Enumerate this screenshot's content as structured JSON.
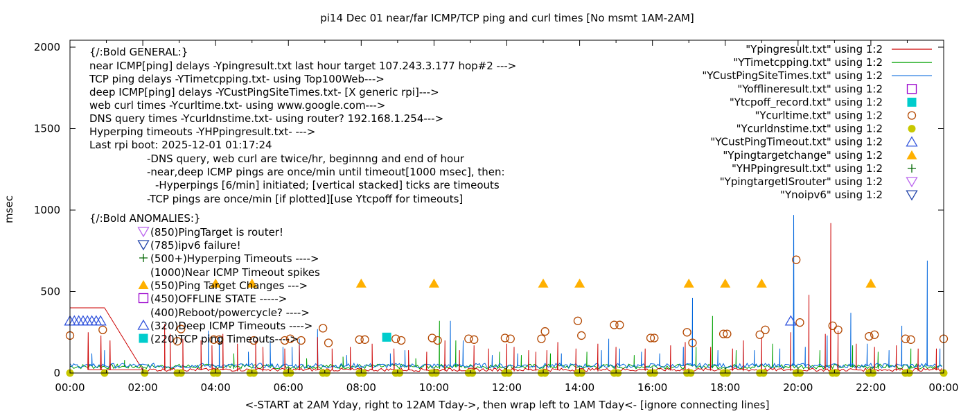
{
  "chart_data": {
    "type": "line",
    "title": "pi14 Dec 01  near/far ICMP/TCP ping and curl times [No msmt 1AM-2AM]",
    "xlabel": "<-START at 2AM Yday, right to 12AM Tday->, then wrap left to 1AM Tday<- [ignore connecting lines]",
    "ylabel": "msec",
    "ylim": [
      0,
      2050
    ],
    "xlim_hours": [
      0,
      24
    ],
    "yticks": [
      "0",
      "500",
      "1000",
      "1500",
      "2000"
    ],
    "xticks": [
      "00:00",
      "02:00",
      "04:00",
      "06:00",
      "08:00",
      "10:00",
      "12:00",
      "14:00",
      "16:00",
      "18:00",
      "20:00",
      "22:00",
      "00:00"
    ],
    "grid": false,
    "legend_position": "top-right",
    "legend": [
      {
        "label": "\"Ypingresult.txt\" using 1:2",
        "marker": "line",
        "color": "#cc0000"
      },
      {
        "label": "\"YTimetcpping.txt\" using 1:2",
        "marker": "line",
        "color": "#00a000"
      },
      {
        "label": "\"YCustPingSiteTimes.txt\" using 1:2",
        "marker": "line",
        "color": "#0066dd"
      },
      {
        "label": "\"Yofflineresult.txt\" using 1:2",
        "marker": "open-square",
        "color": "#9900cc"
      },
      {
        "label": "\"Ytcpoff_record.txt\" using 1:2",
        "marker": "filled-square",
        "color": "#00cccc"
      },
      {
        "label": "\"Ycurltime.txt\" using 1:2",
        "marker": "open-circle",
        "color": "#b34700"
      },
      {
        "label": "\"Ycurldnstime.txt\" using 1:2",
        "marker": "filled-circle",
        "color": "#c8c800"
      },
      {
        "label": "\"YCustPingTimeout.txt\" using 1:2",
        "marker": "open-triangle-up",
        "color": "#3355dd"
      },
      {
        "label": "\"Ypingtargetchange\" using 1:2",
        "marker": "filled-triangle-up",
        "color": "#ffb000"
      },
      {
        "label": "\"YHPpingresult.txt\" using 1:2",
        "marker": "plus",
        "color": "#006600"
      },
      {
        "label": "\"YpingtargetISrouter\" using 1:2",
        "marker": "open-triangle-down",
        "color": "#bb66ee"
      },
      {
        "label": "\"Ynoipv6\" using 1:2",
        "marker": "open-triangle-down",
        "color": "#2244aa"
      }
    ],
    "annotations_general": [
      "{/:Bold GENERAL:}",
      "near ICMP[ping] delays -Ypingresult.txt last hour target 107.243.3.177 hop#2 --->",
      "TCP ping delays -YTimetcpping.txt- using Top100Web--->",
      "deep ICMP[ping] delays -YCustPingSiteTimes.txt- [X generic rpi]--->",
      "web curl times -Ycurltime.txt- using www.google.com--->",
      "DNS query times -Ycurldnstime.txt- using router? 192.168.1.254--->",
      "Hyperping timeouts -YHPpingresult.txt- --->",
      "Last rpi boot: 2025-12-01 01:17:24",
      "-DNS query, web curl are twice/hr, beginnng and end of hour",
      "-near,deep ICMP pings are once/min until timeout[1000 msec], then:",
      "-Hyperpings [6/min] initiated; [vertical stacked] ticks are timeouts",
      "-TCP pings are once/min [if plotted][use Ytcpoff for timeouts]"
    ],
    "annotations_anomalies": [
      "{/:Bold ANOMALIES:}",
      "(850)PingTarget is router!",
      "(785)ipv6 failure!",
      "(500+)Hyperping Timeouts ---->",
      "(1000)Near ICMP Timeout spikes",
      "(550)Ping Target Changes --->",
      "(450)OFFLINE STATE ----->",
      "(400)Reboot/powercycle? ---->",
      "(320)Deep ICMP Timeouts ---->",
      "(220)TCP ping Timeouts---->"
    ],
    "series": [
      {
        "name": "\"Ypingresult.txt\" using 1:2",
        "kind": "near-icmp",
        "spikes": [
          [
            0.5,
            250
          ],
          [
            0.85,
            230
          ],
          [
            1.1,
            200
          ],
          [
            2.6,
            300
          ],
          [
            2.75,
            240
          ],
          [
            3.1,
            210
          ],
          [
            3.6,
            200
          ],
          [
            3.9,
            170
          ],
          [
            4.2,
            240
          ],
          [
            4.6,
            180
          ],
          [
            5.1,
            200
          ],
          [
            5.3,
            160
          ],
          [
            5.9,
            150
          ],
          [
            6.3,
            170
          ],
          [
            6.8,
            220
          ],
          [
            7.2,
            150
          ],
          [
            7.7,
            160
          ],
          [
            8.3,
            180
          ],
          [
            8.9,
            150
          ],
          [
            9.3,
            140
          ],
          [
            9.8,
            130
          ],
          [
            10.3,
            200
          ],
          [
            10.7,
            140
          ],
          [
            11.1,
            170
          ],
          [
            11.5,
            150
          ],
          [
            12.0,
            180
          ],
          [
            12.2,
            160
          ],
          [
            12.6,
            140
          ],
          [
            12.8,
            130
          ],
          [
            13.1,
            140
          ],
          [
            13.4,
            190
          ],
          [
            13.9,
            150
          ],
          [
            14.5,
            180
          ],
          [
            15.0,
            160
          ],
          [
            15.8,
            150
          ],
          [
            16.5,
            170
          ],
          [
            16.9,
            190
          ],
          [
            17.6,
            160
          ],
          [
            18.2,
            150
          ],
          [
            18.5,
            200
          ],
          [
            19.0,
            220
          ],
          [
            19.8,
            250
          ],
          [
            20.3,
            480
          ],
          [
            20.75,
            240
          ],
          [
            20.9,
            920
          ],
          [
            21.1,
            260
          ],
          [
            21.6,
            180
          ],
          [
            22.1,
            160
          ],
          [
            22.7,
            170
          ],
          [
            23.3,
            150
          ],
          [
            23.8,
            150
          ]
        ],
        "baseline": 20
      },
      {
        "name": "\"YTimetcpping.txt\" using 1:2",
        "kind": "tcp",
        "spikes": [
          [
            1.5,
            80
          ],
          [
            4.5,
            120
          ],
          [
            6.5,
            90
          ],
          [
            7.5,
            100
          ],
          [
            9.5,
            90
          ],
          [
            10.15,
            320
          ],
          [
            10.6,
            200
          ],
          [
            11.8,
            130
          ],
          [
            12.4,
            110
          ],
          [
            13.2,
            120
          ],
          [
            14.2,
            130
          ],
          [
            15.5,
            110
          ],
          [
            17.2,
            160
          ],
          [
            17.65,
            350
          ],
          [
            18.3,
            140
          ],
          [
            19.3,
            180
          ],
          [
            20.6,
            140
          ],
          [
            21.5,
            170
          ],
          [
            22.2,
            130
          ],
          [
            23.1,
            150
          ]
        ],
        "baseline": 40
      },
      {
        "name": "\"YCustPingSiteTimes.txt\" using 1:2",
        "kind": "deep-icmp",
        "spikes": [
          [
            0.6,
            120
          ],
          [
            0.95,
            140
          ],
          [
            3.8,
            260
          ],
          [
            4.1,
            220
          ],
          [
            4.9,
            130
          ],
          [
            5.5,
            200
          ],
          [
            5.85,
            160
          ],
          [
            6.1,
            160
          ],
          [
            6.3,
            210
          ],
          [
            6.8,
            270
          ],
          [
            7.6,
            110
          ],
          [
            8.8,
            120
          ],
          [
            9.2,
            140
          ],
          [
            10.45,
            320
          ],
          [
            10.8,
            200
          ],
          [
            11.6,
            110
          ],
          [
            12.3,
            120
          ],
          [
            13.5,
            120
          ],
          [
            14.6,
            140
          ],
          [
            14.8,
            210
          ],
          [
            15.1,
            150
          ],
          [
            15.7,
            130
          ],
          [
            16.2,
            120
          ],
          [
            16.85,
            160
          ],
          [
            17.1,
            460
          ],
          [
            17.8,
            140
          ],
          [
            18.5,
            160
          ],
          [
            18.8,
            140
          ],
          [
            19.5,
            150
          ],
          [
            19.88,
            970
          ],
          [
            20.2,
            160
          ],
          [
            20.8,
            230
          ],
          [
            21.45,
            370
          ],
          [
            21.9,
            180
          ],
          [
            22.5,
            140
          ],
          [
            22.85,
            290
          ],
          [
            23.55,
            690
          ],
          [
            23.9,
            150
          ]
        ],
        "baseline": 45
      },
      {
        "name": "\"Yofflineresult.txt\" using 1:2",
        "kind": "offline",
        "points": []
      },
      {
        "name": "\"Ytcpoff_record.txt\" using 1:2",
        "kind": "tcpoff",
        "points": [
          [
            8.7,
            220
          ]
        ]
      },
      {
        "name": "\"Ycurltime.txt\" using 1:2",
        "kind": "curl",
        "points": [
          [
            0.0,
            230
          ],
          [
            0.9,
            265
          ],
          [
            2.95,
            195
          ],
          [
            3.05,
            270
          ],
          [
            3.95,
            205
          ],
          [
            4.1,
            205
          ],
          [
            5.05,
            200
          ],
          [
            5.9,
            200
          ],
          [
            6.05,
            210
          ],
          [
            6.35,
            200
          ],
          [
            6.95,
            275
          ],
          [
            7.1,
            185
          ],
          [
            7.95,
            205
          ],
          [
            8.1,
            205
          ],
          [
            8.95,
            210
          ],
          [
            9.1,
            200
          ],
          [
            9.95,
            215
          ],
          [
            10.1,
            200
          ],
          [
            10.95,
            210
          ],
          [
            11.1,
            205
          ],
          [
            11.95,
            215
          ],
          [
            12.1,
            210
          ],
          [
            12.95,
            210
          ],
          [
            13.05,
            255
          ],
          [
            13.95,
            320
          ],
          [
            14.05,
            230
          ],
          [
            14.95,
            295
          ],
          [
            15.1,
            295
          ],
          [
            15.95,
            215
          ],
          [
            16.05,
            215
          ],
          [
            16.95,
            250
          ],
          [
            17.1,
            185
          ],
          [
            17.95,
            240
          ],
          [
            18.05,
            240
          ],
          [
            18.95,
            235
          ],
          [
            19.1,
            265
          ],
          [
            19.95,
            695
          ],
          [
            20.05,
            310
          ],
          [
            20.95,
            290
          ],
          [
            21.1,
            265
          ],
          [
            21.95,
            225
          ],
          [
            22.1,
            235
          ],
          [
            22.95,
            210
          ],
          [
            23.1,
            205
          ],
          [
            24.0,
            210
          ]
        ]
      },
      {
        "name": "\"Ycurldnstime.txt\" using 1:2",
        "kind": "dns",
        "points": [
          [
            0.0,
            0
          ],
          [
            0.95,
            0
          ],
          [
            2.05,
            0
          ],
          [
            2.95,
            0
          ],
          [
            3.05,
            0
          ],
          [
            3.95,
            0
          ],
          [
            4.05,
            0
          ],
          [
            4.95,
            0
          ],
          [
            5.05,
            0
          ],
          [
            5.95,
            0
          ],
          [
            6.05,
            0
          ],
          [
            6.95,
            0
          ],
          [
            7.05,
            0
          ],
          [
            7.95,
            0
          ],
          [
            8.05,
            0
          ],
          [
            8.95,
            0
          ],
          [
            9.05,
            0
          ],
          [
            9.95,
            0
          ],
          [
            10.05,
            0
          ],
          [
            10.95,
            0
          ],
          [
            11.05,
            0
          ],
          [
            11.95,
            0
          ],
          [
            12.05,
            0
          ],
          [
            12.95,
            0
          ],
          [
            13.05,
            0
          ],
          [
            13.95,
            0
          ],
          [
            14.05,
            0
          ],
          [
            14.95,
            0
          ],
          [
            15.05,
            0
          ],
          [
            15.95,
            0
          ],
          [
            16.05,
            0
          ],
          [
            16.95,
            0
          ],
          [
            17.05,
            0
          ],
          [
            17.95,
            0
          ],
          [
            18.05,
            0
          ],
          [
            18.95,
            0
          ],
          [
            19.05,
            0
          ],
          [
            19.95,
            0
          ],
          [
            20.05,
            0
          ],
          [
            20.95,
            0
          ],
          [
            21.05,
            0
          ],
          [
            21.95,
            0
          ],
          [
            22.05,
            0
          ],
          [
            22.95,
            0
          ],
          [
            23.05,
            0
          ],
          [
            24.0,
            0
          ]
        ]
      },
      {
        "name": "\"YCustPingTimeout.txt\" using 1:2",
        "kind": "deep-timeout",
        "points": [
          [
            0.0,
            320
          ],
          [
            0.12,
            320
          ],
          [
            0.24,
            320
          ],
          [
            0.36,
            320
          ],
          [
            0.48,
            320
          ],
          [
            0.6,
            320
          ],
          [
            0.72,
            320
          ],
          [
            0.84,
            320
          ],
          [
            19.8,
            320
          ]
        ]
      },
      {
        "name": "\"Ypingtargetchange\" using 1:2",
        "kind": "target-change",
        "points": [
          [
            4.0,
            550
          ],
          [
            5.0,
            550
          ],
          [
            8.0,
            550
          ],
          [
            10.0,
            550
          ],
          [
            13.0,
            550
          ],
          [
            14.0,
            550
          ],
          [
            17.0,
            550
          ],
          [
            18.0,
            550
          ],
          [
            19.0,
            550
          ],
          [
            22.0,
            550
          ]
        ]
      },
      {
        "name": "\"YHPpingresult.txt\" using 1:2",
        "kind": "hyperping",
        "points": []
      },
      {
        "name": "\"YpingtargetISrouter\" using 1:2",
        "kind": "router",
        "points": []
      },
      {
        "name": "\"Ynoipv6\" using 1:2",
        "kind": "noipv6",
        "points": []
      }
    ],
    "connecting_line": [
      [
        0.0,
        400
      ],
      [
        0.95,
        400
      ],
      [
        2.05,
        0
      ]
    ]
  }
}
